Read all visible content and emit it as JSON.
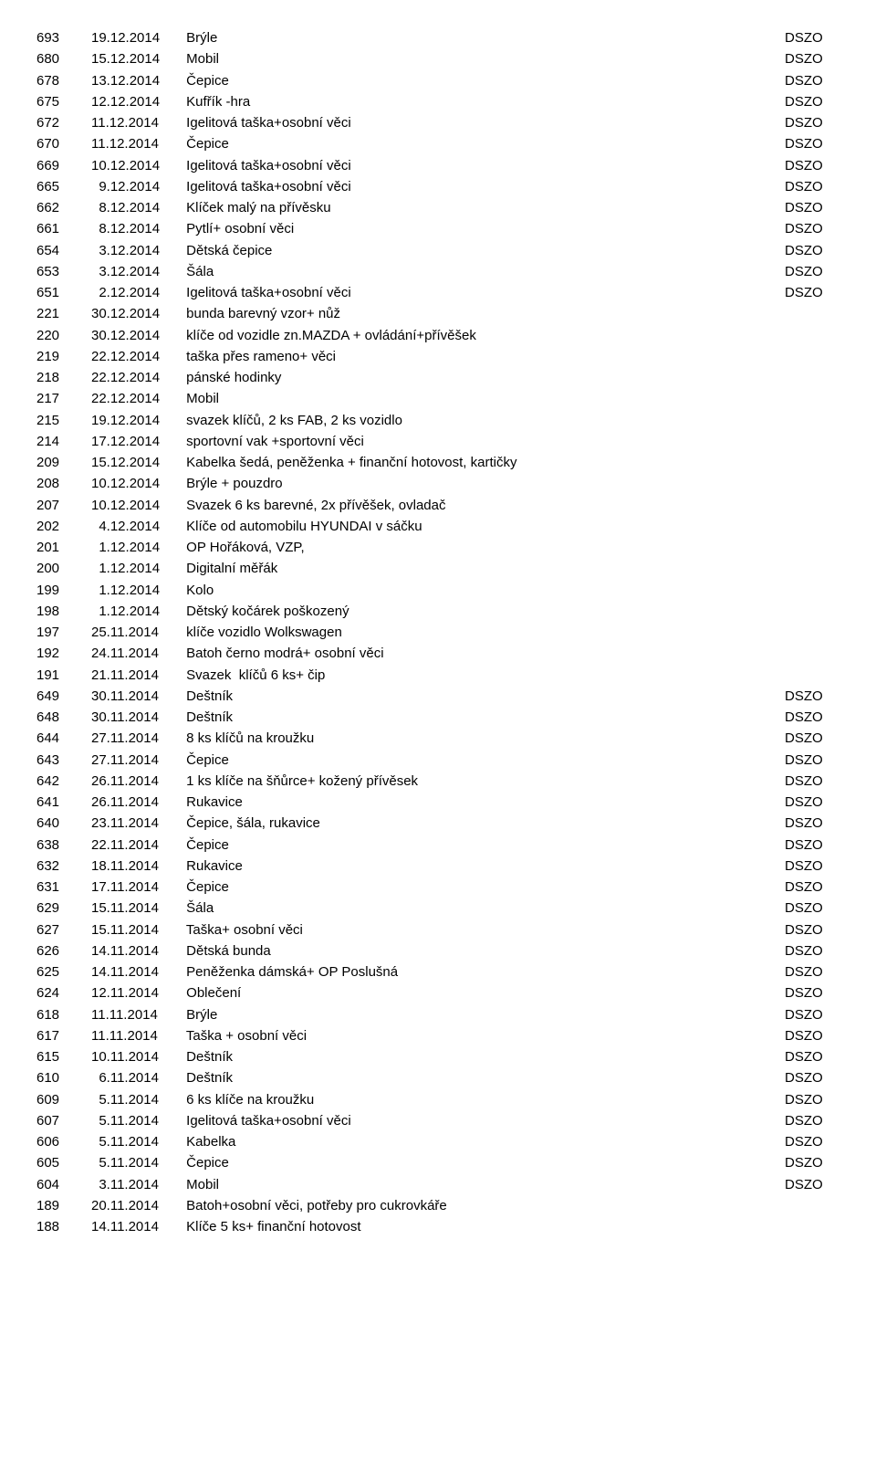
{
  "rows": [
    {
      "n": "693",
      "d": "19.12.2014",
      "t": "Brýle",
      "tag": "DSZO"
    },
    {
      "n": "680",
      "d": "15.12.2014",
      "t": "Mobil",
      "tag": "DSZO"
    },
    {
      "n": "678",
      "d": "13.12.2014",
      "t": "Čepice",
      "tag": "DSZO"
    },
    {
      "n": "675",
      "d": "12.12.2014",
      "t": "Kufřík -hra",
      "tag": "DSZO"
    },
    {
      "n": "672",
      "d": "11.12.2014",
      "t": "Igelitová taška+osobní věci",
      "tag": "DSZO"
    },
    {
      "n": "670",
      "d": "11.12.2014",
      "t": "Čepice",
      "tag": "DSZO"
    },
    {
      "n": "669",
      "d": "10.12.2014",
      "t": "Igelitová taška+osobní věci",
      "tag": "DSZO"
    },
    {
      "n": "665",
      "d": "9.12.2014",
      "t": "Igelitová taška+osobní věci",
      "tag": "DSZO"
    },
    {
      "n": "662",
      "d": "8.12.2014",
      "t": "Klíček malý na přívěsku",
      "tag": "DSZO"
    },
    {
      "n": "661",
      "d": "8.12.2014",
      "t": "Pytlí+ osobní věci",
      "tag": "DSZO"
    },
    {
      "n": "654",
      "d": "3.12.2014",
      "t": "Dětská čepice",
      "tag": "DSZO"
    },
    {
      "n": "653",
      "d": "3.12.2014",
      "t": "Šála",
      "tag": "DSZO"
    },
    {
      "n": "651",
      "d": "2.12.2014",
      "t": "Igelitová taška+osobní věci",
      "tag": "DSZO"
    },
    {
      "n": "221",
      "d": "30.12.2014",
      "t": "bunda barevný vzor+ nůž",
      "tag": ""
    },
    {
      "n": "220",
      "d": "30.12.2014",
      "t": "klíče od vozidle zn.MAZDA + ovládání+přívěšek",
      "tag": ""
    },
    {
      "n": "219",
      "d": "22.12.2014",
      "t": "taška přes rameno+ věci",
      "tag": ""
    },
    {
      "n": "218",
      "d": "22.12.2014",
      "t": "pánské hodinky",
      "tag": ""
    },
    {
      "n": "217",
      "d": "22.12.2014",
      "t": "Mobil",
      "tag": ""
    },
    {
      "n": "215",
      "d": "19.12.2014",
      "t": "svazek klíčů, 2 ks FAB, 2 ks vozidlo",
      "tag": ""
    },
    {
      "n": "214",
      "d": "17.12.2014",
      "t": "sportovní vak +sportovní věci",
      "tag": ""
    },
    {
      "n": "209",
      "d": "15.12.2014",
      "t": "Kabelka šedá, peněženka + finanční hotovost, kartičky",
      "tag": ""
    },
    {
      "n": "208",
      "d": "10.12.2014",
      "t": "Brýle + pouzdro",
      "tag": ""
    },
    {
      "n": "207",
      "d": "10.12.2014",
      "t": "Svazek 6 ks barevné, 2x přívěšek, ovladač",
      "tag": ""
    },
    {
      "n": "202",
      "d": "4.12.2014",
      "t": "Klíče od automobilu HYUNDAI v sáčku",
      "tag": ""
    },
    {
      "n": "201",
      "d": "1.12.2014",
      "t": "OP Hořáková, VZP,",
      "tag": ""
    },
    {
      "n": "200",
      "d": "1.12.2014",
      "t": "Digitalní měřák",
      "tag": ""
    },
    {
      "n": "199",
      "d": "1.12.2014",
      "t": "Kolo",
      "tag": ""
    },
    {
      "n": "198",
      "d": "1.12.2014",
      "t": "Dětský kočárek poškozený",
      "tag": ""
    },
    {
      "n": "197",
      "d": "25.11.2014",
      "t": "klíče vozidlo Wolkswagen",
      "tag": ""
    },
    {
      "n": "192",
      "d": "24.11.2014",
      "t": "Batoh černo modrá+ osobní věci",
      "tag": ""
    },
    {
      "n": "191",
      "d": "21.11.2014",
      "t": "Svazek  klíčů 6 ks+ čip",
      "tag": ""
    },
    {
      "n": "649",
      "d": "30.11.2014",
      "t": "Deštník",
      "tag": "DSZO"
    },
    {
      "n": "648",
      "d": "30.11.2014",
      "t": "Deštník",
      "tag": "DSZO"
    },
    {
      "n": "644",
      "d": "27.11.2014",
      "t": "8 ks klíčů na kroužku",
      "tag": "DSZO"
    },
    {
      "n": "643",
      "d": "27.11.2014",
      "t": "Čepice",
      "tag": "DSZO"
    },
    {
      "n": "642",
      "d": "26.11.2014",
      "t": "1 ks klíče na šňůrce+ kožený přívěsek",
      "tag": "DSZO"
    },
    {
      "n": "641",
      "d": "26.11.2014",
      "t": "Rukavice",
      "tag": "DSZO"
    },
    {
      "n": "640",
      "d": "23.11.2014",
      "t": "Čepice, šála, rukavice",
      "tag": "DSZO"
    },
    {
      "n": "638",
      "d": "22.11.2014",
      "t": "Čepice",
      "tag": "DSZO"
    },
    {
      "n": "632",
      "d": "18.11.2014",
      "t": "Rukavice",
      "tag": "DSZO"
    },
    {
      "n": "631",
      "d": "17.11.2014",
      "t": "Čepice",
      "tag": "DSZO"
    },
    {
      "n": "629",
      "d": "15.11.2014",
      "t": "Šála",
      "tag": "DSZO"
    },
    {
      "n": "627",
      "d": "15.11.2014",
      "t": "Taška+ osobní věci",
      "tag": "DSZO"
    },
    {
      "n": "626",
      "d": "14.11.2014",
      "t": "Dětská bunda",
      "tag": "DSZO"
    },
    {
      "n": "625",
      "d": "14.11.2014",
      "t": "Peněženka dámská+ OP Poslušná",
      "tag": "DSZO"
    },
    {
      "n": "624",
      "d": "12.11.2014",
      "t": "Oblečení",
      "tag": "DSZO"
    },
    {
      "n": "618",
      "d": "11.11.2014",
      "t": "Brýle",
      "tag": "DSZO"
    },
    {
      "n": "617",
      "d": "11.11.2014",
      "t": "Taška + osobní věci",
      "tag": "DSZO"
    },
    {
      "n": "615",
      "d": "10.11.2014",
      "t": "Deštník",
      "tag": "DSZO"
    },
    {
      "n": "610",
      "d": "6.11.2014",
      "t": "Deštník",
      "tag": "DSZO"
    },
    {
      "n": "609",
      "d": "5.11.2014",
      "t": "6 ks klíče na kroužku",
      "tag": "DSZO"
    },
    {
      "n": "607",
      "d": "5.11.2014",
      "t": "Igelitová taška+osobní věci",
      "tag": "DSZO"
    },
    {
      "n": "606",
      "d": "5.11.2014",
      "t": "Kabelka",
      "tag": "DSZO"
    },
    {
      "n": "605",
      "d": "5.11.2014",
      "t": "Čepice",
      "tag": "DSZO"
    },
    {
      "n": "604",
      "d": "3.11.2014",
      "t": "Mobil",
      "tag": "DSZO"
    },
    {
      "n": "189",
      "d": "20.11.2014",
      "t": "Batoh+osobní věci, potřeby pro cukrovkáře",
      "tag": ""
    },
    {
      "n": "188",
      "d": "14.11.2014",
      "t": "Klíče 5 ks+ finanční hotovost",
      "tag": ""
    }
  ],
  "layout": {
    "num_width": 60,
    "date_width": 100,
    "tag_width": 60,
    "font_size": 15,
    "bg": "#ffffff",
    "text": "#000000"
  }
}
